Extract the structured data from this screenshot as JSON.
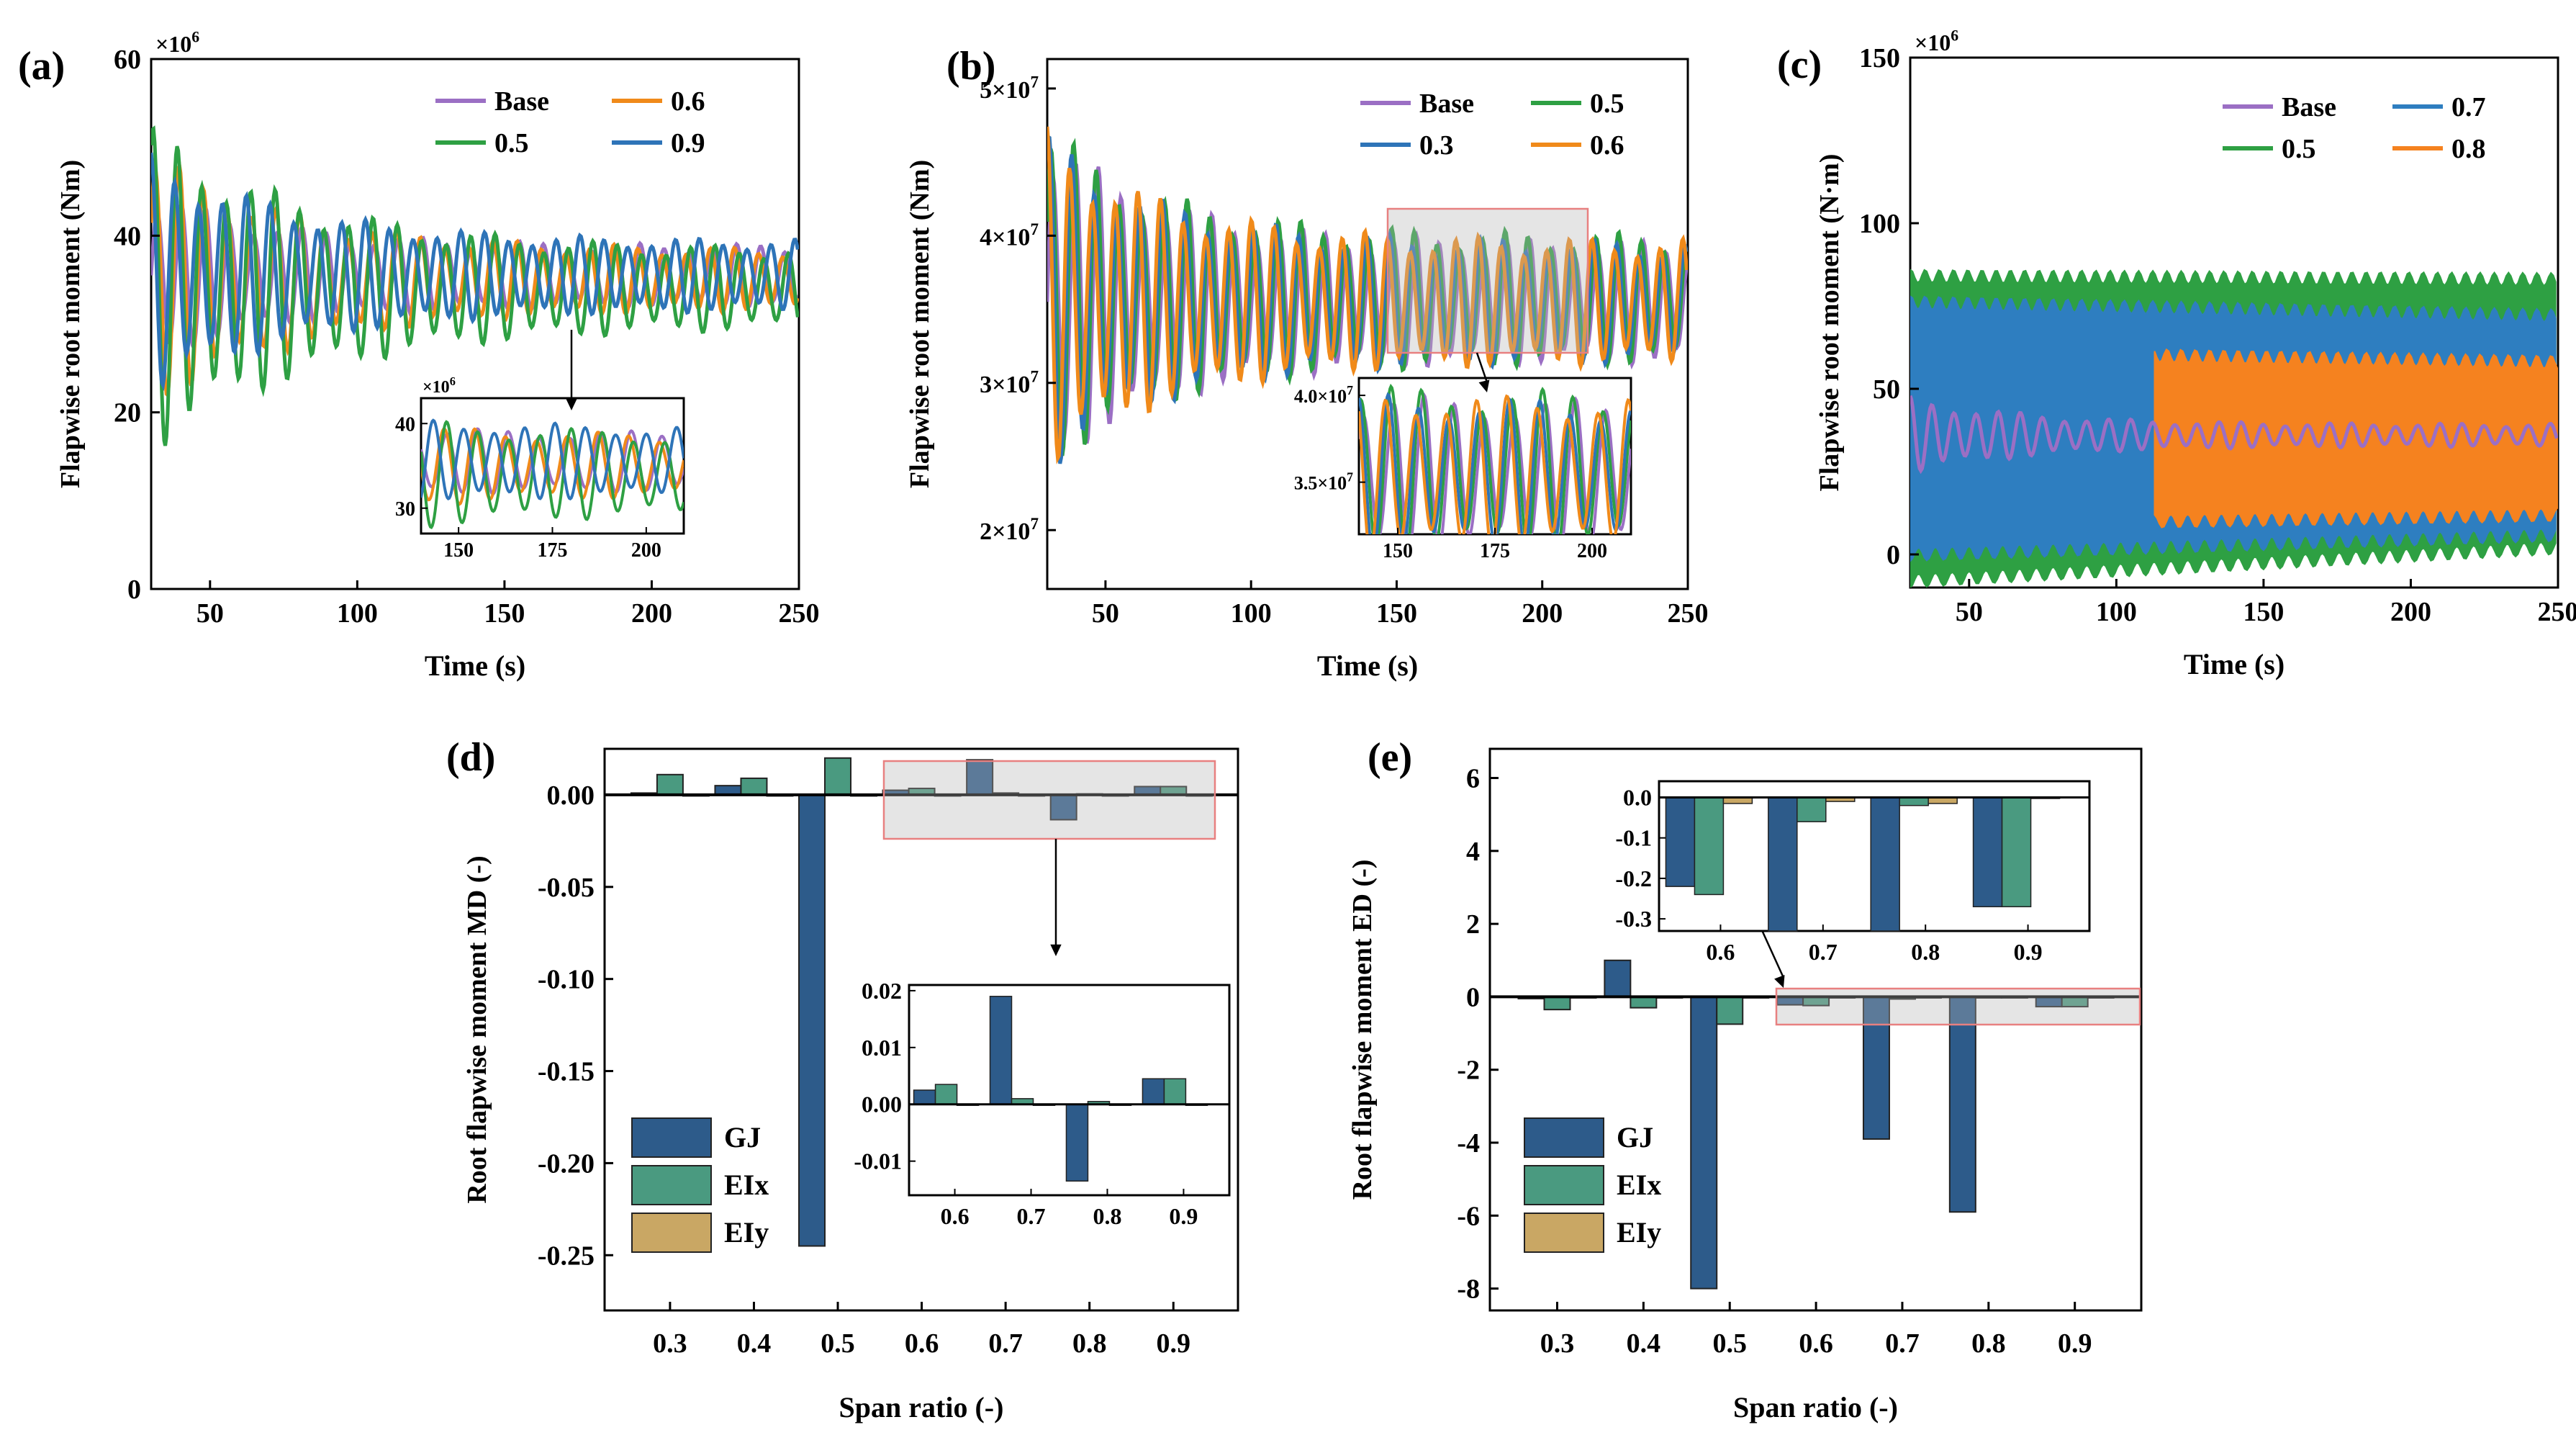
{
  "colors": {
    "Base": "#9b6fc4",
    "0.3": "#2e74b8",
    "0.5": "#2ea043",
    "0.6": "#f08a1a",
    "0.7": "#2e7ec0",
    "0.8": "#f5821f",
    "0.9": "#2e74b8",
    "GJ": "#2d5b8a",
    "EIx": "#4a9a80",
    "EIy": "#c9a764"
  },
  "chart_data": [
    {
      "id": "a",
      "type": "line",
      "panel_label": "(a)",
      "xlabel": "Time (s)",
      "ylabel": "Flapwise root moment (Nm)",
      "scale_label": "×10",
      "scale_exp": "6",
      "xlim": [
        30,
        250
      ],
      "ylim": [
        0,
        60
      ],
      "xticks": [
        50,
        100,
        150,
        200,
        250
      ],
      "yticks": [
        0,
        20,
        40,
        60
      ],
      "series": [
        {
          "name": "Base",
          "mean": 35.5,
          "amp0": 10,
          "amp_end": 3.5,
          "tau": 45,
          "period": 8.2
        },
        {
          "name": "0.6",
          "mean": 35,
          "amp0": 15,
          "amp_end": 3.5,
          "tau": 50,
          "period": 8.2
        },
        {
          "name": "0.5",
          "mean": 34,
          "amp0": 19,
          "amp_end": 4.5,
          "tau": 55,
          "period": 8.3
        },
        {
          "name": "0.9",
          "mean": 35.5,
          "amp0": 14,
          "amp_end": 4,
          "tau": 50,
          "period": 8.1
        }
      ],
      "legend": [
        "Base",
        "0.6",
        "0.5",
        "0.9"
      ],
      "inset": {
        "xlim": [
          140,
          210
        ],
        "ylim": [
          27,
          43
        ],
        "xticks": [
          150,
          175,
          200
        ],
        "yticks": [
          30,
          40
        ],
        "scale_label": "×10",
        "scale_exp": "6"
      }
    },
    {
      "id": "b",
      "type": "line",
      "panel_label": "(b)",
      "xlabel": "Time (s)",
      "ylabel": "Flapwise root moment (Nm)",
      "xlim": [
        30,
        250
      ],
      "ylim": [
        1.6,
        5.2
      ],
      "xticks": [
        50,
        100,
        150,
        200,
        250
      ],
      "yticks": [
        {
          "v": 2,
          "t": "2×10",
          "e": "7"
        },
        {
          "v": 3,
          "t": "3×10",
          "e": "7"
        },
        {
          "v": 4,
          "t": "4×10",
          "e": "7"
        },
        {
          "v": 5,
          "t": "5×10",
          "e": "7"
        }
      ],
      "series": [
        {
          "name": "Base",
          "mean": 3.55,
          "amp0": 1.2,
          "amp_end": 0.42,
          "tau": 40,
          "period": 7.8
        },
        {
          "name": "0.5",
          "mean": 3.57,
          "amp0": 1.22,
          "amp_end": 0.45,
          "tau": 40,
          "period": 7.8
        },
        {
          "name": "0.3",
          "mean": 3.55,
          "amp0": 1.18,
          "amp_end": 0.42,
          "tau": 40,
          "period": 7.8
        },
        {
          "name": "0.6",
          "mean": 3.55,
          "amp0": 1.2,
          "amp_end": 0.43,
          "tau": 40,
          "period": 7.8
        }
      ],
      "legend": [
        "Base",
        "0.5",
        "0.3",
        "0.6"
      ],
      "inset": {
        "xlim": [
          140,
          210
        ],
        "ylim": [
          3.2,
          4.1
        ],
        "xticks": [
          150,
          175,
          200
        ],
        "yticks": [
          {
            "v": 3.5,
            "t": "3.5×10",
            "e": "7"
          },
          {
            "v": 4.0,
            "t": "4.0×10",
            "e": "7"
          }
        ]
      }
    },
    {
      "id": "c",
      "type": "line",
      "panel_label": "(c)",
      "xlabel": "Time (s)",
      "ylabel": "Flapwise root moment (N·m)",
      "scale_label": "×10",
      "scale_exp": "6",
      "xlim": [
        30,
        250
      ],
      "ylim": [
        -10,
        150
      ],
      "xticks": [
        50,
        100,
        150,
        200,
        250
      ],
      "yticks": [
        0,
        50,
        100,
        150
      ],
      "series": [
        {
          "name": "0.5",
          "band": [
            [
              30,
              -8,
              84
            ],
            [
              250,
              2,
              83
            ]
          ]
        },
        {
          "name": "0.7",
          "band": [
            [
              30,
              0,
              76
            ],
            [
              250,
              6,
              72
            ]
          ]
        },
        {
          "name": "0.8",
          "band": [
            [
              113,
              10,
              60
            ],
            [
              250,
              12,
              58
            ]
          ]
        },
        {
          "name": "Base",
          "mean": 36,
          "amp0": 12,
          "amp_end": 3.5,
          "tau": 40,
          "period": 7.5
        }
      ],
      "legend": [
        "Base",
        "0.7",
        "0.5",
        "0.8"
      ]
    },
    {
      "id": "d",
      "type": "bar",
      "panel_label": "(d)",
      "xlabel": "Span ratio (-)",
      "ylabel": "Root flapwise moment MD (-)",
      "categories": [
        "0.3",
        "0.4",
        "0.5",
        "0.6",
        "0.7",
        "0.8",
        "0.9"
      ],
      "ylim": [
        -0.28,
        0.025
      ],
      "yticks": [
        {
          "v": 0,
          "t": "0.00"
        },
        {
          "v": -0.05,
          "t": "-0.05"
        },
        {
          "v": -0.1,
          "t": "-0.10"
        },
        {
          "v": -0.15,
          "t": "-0.15"
        },
        {
          "v": -0.2,
          "t": "-0.20"
        },
        {
          "v": -0.25,
          "t": "-0.25"
        }
      ],
      "series": [
        {
          "name": "GJ",
          "values": [
            0.001,
            0.005,
            -0.245,
            0.0025,
            0.019,
            -0.0135,
            0.0045
          ]
        },
        {
          "name": "EIx",
          "values": [
            0.011,
            0.009,
            0.02,
            0.0035,
            0.001,
            0.0005,
            0.0045
          ]
        },
        {
          "name": "EIy",
          "values": [
            0,
            0,
            0,
            0,
            0,
            0,
            0
          ]
        }
      ],
      "inset": {
        "categories": [
          "0.6",
          "0.7",
          "0.8",
          "0.9"
        ],
        "ylim": [
          -0.016,
          0.021
        ],
        "yticks": [
          {
            "v": 0.02,
            "t": "0.02"
          },
          {
            "v": 0.01,
            "t": "0.01"
          },
          {
            "v": 0,
            "t": "0.00"
          },
          {
            "v": -0.01,
            "t": "-0.01"
          }
        ]
      }
    },
    {
      "id": "e",
      "type": "bar",
      "panel_label": "(e)",
      "xlabel": "Span ratio (-)",
      "ylabel": "Root flapwise moment ED (-)",
      "categories": [
        "0.3",
        "0.4",
        "0.5",
        "0.6",
        "0.7",
        "0.8",
        "0.9"
      ],
      "ylim": [
        -8.6,
        6.8
      ],
      "yticks": [
        {
          "v": 6,
          "t": "6"
        },
        {
          "v": 4,
          "t": "4"
        },
        {
          "v": 2,
          "t": "2"
        },
        {
          "v": 0,
          "t": "0"
        },
        {
          "v": -2,
          "t": "-2"
        },
        {
          "v": -4,
          "t": "-4"
        },
        {
          "v": -6,
          "t": "-6"
        },
        {
          "v": -8,
          "t": "-8"
        }
      ],
      "series": [
        {
          "name": "GJ",
          "values": [
            -0.05,
            1.0,
            -8.0,
            -0.22,
            -3.9,
            -5.9,
            -0.27
          ]
        },
        {
          "name": "EIx",
          "values": [
            -0.35,
            -0.3,
            -0.75,
            -0.24,
            -0.06,
            -0.02,
            -0.27
          ]
        },
        {
          "name": "EIy",
          "values": [
            0,
            0,
            0,
            -0.015,
            -0.01,
            -0.015,
            0
          ]
        }
      ],
      "inset": {
        "categories": [
          "0.6",
          "0.7",
          "0.8",
          "0.9"
        ],
        "ylim": [
          -0.33,
          0.04
        ],
        "yticks": [
          {
            "v": 0,
            "t": "0.0"
          },
          {
            "v": -0.1,
            "t": "-0.1"
          },
          {
            "v": -0.2,
            "t": "-0.2"
          },
          {
            "v": -0.3,
            "t": "-0.3"
          }
        ]
      }
    }
  ]
}
